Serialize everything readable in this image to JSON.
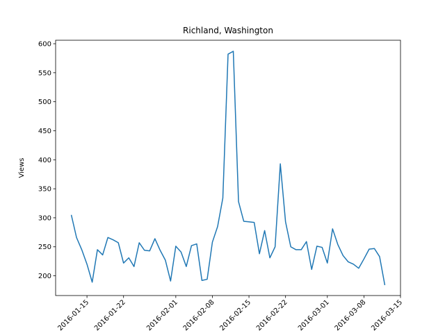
{
  "chart_data": {
    "type": "line",
    "title": "Richland, Washington",
    "y_label": "Views",
    "x": [
      "2016-01-12",
      "2016-01-13",
      "2016-01-14",
      "2016-01-15",
      "2016-01-16",
      "2016-01-17",
      "2016-01-18",
      "2016-01-19",
      "2016-01-20",
      "2016-01-21",
      "2016-01-22",
      "2016-01-23",
      "2016-01-24",
      "2016-01-25",
      "2016-01-26",
      "2016-01-27",
      "2016-01-28",
      "2016-01-29",
      "2016-01-30",
      "2016-01-31",
      "2016-02-01",
      "2016-02-02",
      "2016-02-03",
      "2016-02-04",
      "2016-02-05",
      "2016-02-06",
      "2016-02-07",
      "2016-02-08",
      "2016-02-09",
      "2016-02-10",
      "2016-02-11",
      "2016-02-12",
      "2016-02-13",
      "2016-02-14",
      "2016-02-15",
      "2016-02-16",
      "2016-02-17",
      "2016-02-18",
      "2016-02-19",
      "2016-02-20",
      "2016-02-21",
      "2016-02-22",
      "2016-02-23",
      "2016-02-24",
      "2016-02-25",
      "2016-02-26",
      "2016-02-27",
      "2016-02-28",
      "2016-02-29",
      "2016-03-01",
      "2016-03-02",
      "2016-03-03",
      "2016-03-04",
      "2016-03-05",
      "2016-03-06",
      "2016-03-07",
      "2016-03-08",
      "2016-03-09",
      "2016-03-10",
      "2016-03-11",
      "2016-03-12"
    ],
    "series": [
      {
        "color": "#1f77b4",
        "values": [
          305,
          266,
          245,
          220,
          189,
          245,
          236,
          266,
          262,
          257,
          222,
          231,
          216,
          257,
          244,
          243,
          264,
          244,
          227,
          191,
          251,
          241,
          216,
          252,
          255,
          192,
          194,
          258,
          285,
          334,
          582,
          587,
          328,
          294,
          293,
          292,
          238,
          278,
          231,
          250,
          393,
          293,
          250,
          245,
          245,
          259,
          211,
          251,
          249,
          222,
          281,
          254,
          235,
          224,
          220,
          213,
          229,
          246,
          247,
          233,
          184
        ]
      }
    ],
    "xlim": [
      "2016-01-09",
      "2016-03-15"
    ],
    "xticks": [
      "2016-01-15",
      "2016-01-22",
      "2016-02-01",
      "2016-02-08",
      "2016-02-15",
      "2016-02-22",
      "2016-03-01",
      "2016-03-08",
      "2016-03-15"
    ],
    "ylim": [
      166,
      606
    ],
    "yticks": [
      200,
      250,
      300,
      350,
      400,
      450,
      500,
      550,
      600
    ]
  }
}
